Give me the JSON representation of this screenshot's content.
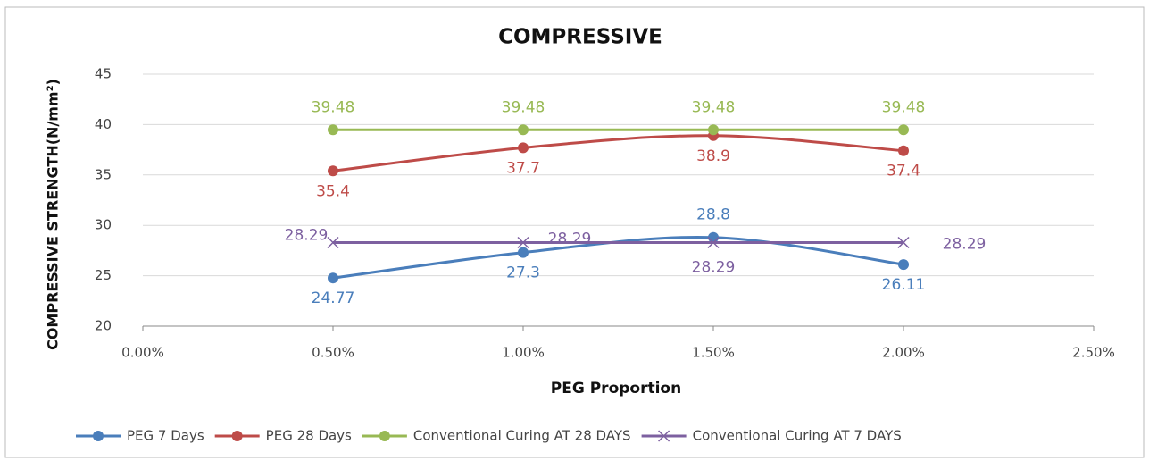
{
  "chart_data": {
    "type": "line",
    "title": "COMPRESSIVE",
    "xlabel": "PEG Proportion",
    "ylabel": "COMPRESSIVE STRENGTH(N/mm²)",
    "x": [
      0.5,
      1.0,
      1.5,
      2.0
    ],
    "series": [
      {
        "name": "PEG 7 Days",
        "color": "#4a7ebb",
        "marker": "circle",
        "values": [
          24.77,
          27.3,
          28.8,
          26.11
        ]
      },
      {
        "name": "PEG 28 Days",
        "color": "#be4b48",
        "marker": "circle",
        "values": [
          35.4,
          37.7,
          38.9,
          37.4
        ]
      },
      {
        "name": "Conventional Curing AT 28 DAYS",
        "color": "#98b954",
        "marker": "circle",
        "values": [
          39.48,
          39.48,
          39.48,
          39.48
        ]
      },
      {
        "name": "Conventional Curing AT 7 DAYS",
        "color": "#7d60a0",
        "marker": "x",
        "values": [
          28.29,
          28.29,
          28.29,
          28.29
        ]
      }
    ],
    "xlim": [
      0,
      2.5
    ],
    "xticks": [
      {
        "value": 0,
        "label": "0.00%"
      },
      {
        "value": 0.5,
        "label": "0.50%"
      },
      {
        "value": 1.0,
        "label": "1.00%"
      },
      {
        "value": 1.5,
        "label": "1.50%"
      },
      {
        "value": 2.0,
        "label": "2.00%"
      },
      {
        "value": 2.5,
        "label": "2.50%"
      }
    ],
    "ylim": [
      20,
      45
    ],
    "yticks": [
      20,
      25,
      30,
      35,
      40,
      45
    ],
    "grid": true,
    "legend": "bottom"
  }
}
